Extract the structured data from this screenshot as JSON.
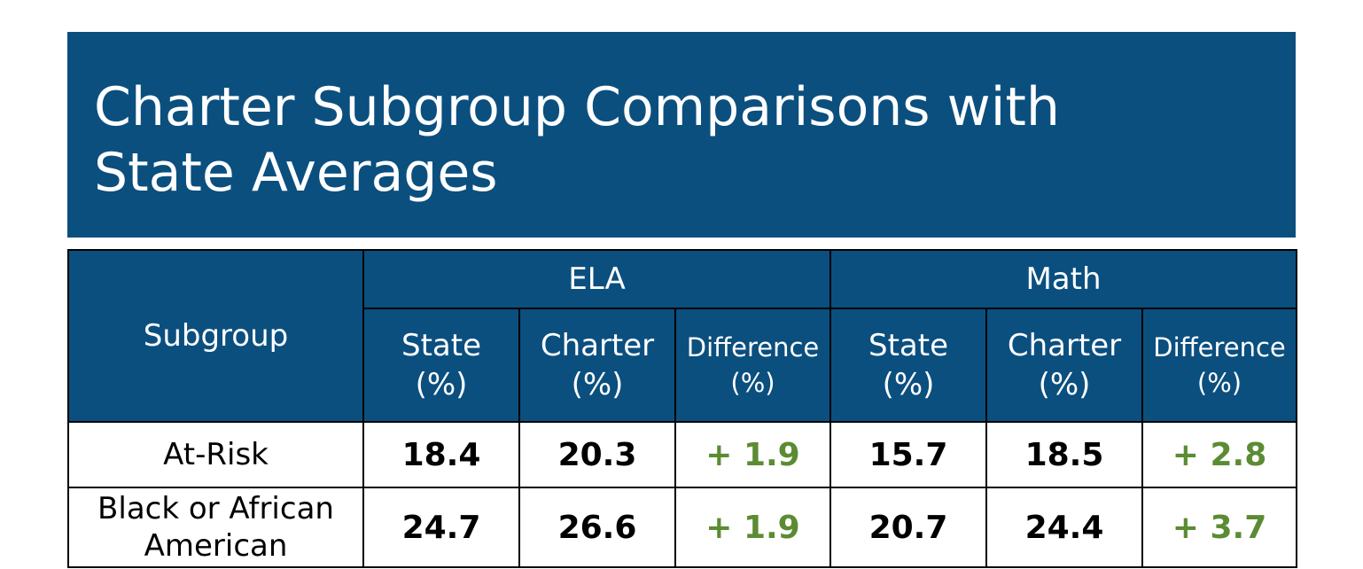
{
  "title": "Charter Subgroup Comparisons with State Averages",
  "colors": {
    "header_bg": "#0b4f7f",
    "header_text": "#ffffff",
    "positive_diff": "#5b8c33"
  },
  "table": {
    "subgroup_header": "Subgroup",
    "groups": [
      "ELA",
      "Math"
    ],
    "sub_headers": {
      "state": [
        "State",
        "(%)"
      ],
      "charter": [
        "Charter",
        "(%)"
      ],
      "difference": [
        "Difference",
        "(%)"
      ]
    },
    "rows": [
      {
        "subgroup": "At-Risk",
        "ela_state": "18.4",
        "ela_charter": "20.3",
        "ela_diff": "+ 1.9",
        "math_state": "15.7",
        "math_charter": "18.5",
        "math_diff": "+ 2.8"
      },
      {
        "subgroup": "Black or African American",
        "ela_state": "24.7",
        "ela_charter": "26.6",
        "ela_diff": "+ 1.9",
        "math_state": "20.7",
        "math_charter": "24.4",
        "math_diff": "+ 3.7"
      }
    ]
  }
}
